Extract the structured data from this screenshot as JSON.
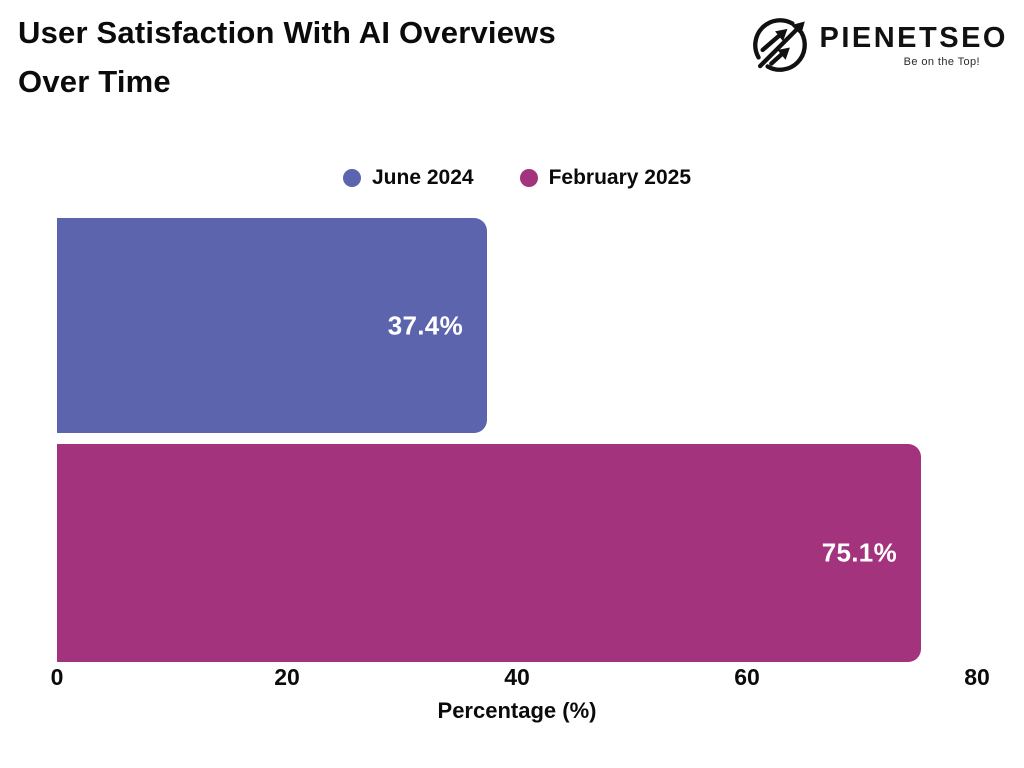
{
  "header": {
    "title_line1": "User Satisfaction With AI Overviews",
    "title_line2": "Over Time",
    "logo": {
      "brand": "PIENETSEO",
      "tagline": "Be on the Top!",
      "icon": "growth-arrows-circle-icon"
    }
  },
  "chart_data": {
    "type": "bar",
    "orientation": "horizontal",
    "title": "User Satisfaction With AI Overviews Over Time",
    "categories": [
      "June 2024",
      "February 2025"
    ],
    "values": [
      37.4,
      75.1
    ],
    "value_labels": [
      "37.4%",
      "75.1%"
    ],
    "series_colors": [
      "#5B64AD",
      "#A2337C"
    ],
    "xlabel": "Percentage (%)",
    "ylabel": "",
    "xlim": [
      0,
      80
    ],
    "xticks": [
      "0",
      "20",
      "40",
      "60",
      "80"
    ],
    "grid": false,
    "legend": {
      "position": "top",
      "entries": [
        {
          "label": "June 2024",
          "color": "#5B64AD"
        },
        {
          "label": "February 2025",
          "color": "#A2337C"
        }
      ]
    },
    "text_color": "#0b0b0b",
    "value_label_color": "#ffffff"
  }
}
